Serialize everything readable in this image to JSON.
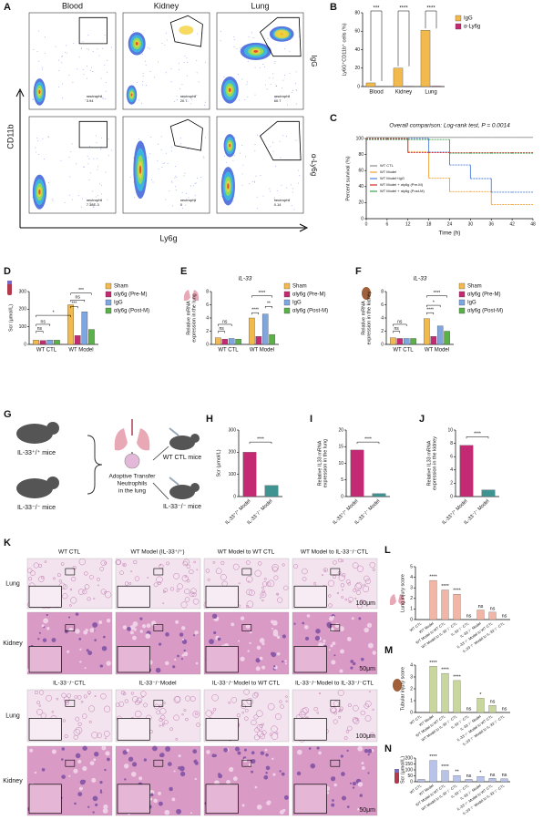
{
  "panel_a": {
    "letter": "A",
    "columns": [
      "Blood",
      "Kidney",
      "Lung"
    ],
    "rows": [
      "IgG",
      "α-Ly6g"
    ],
    "y_axis": "CD11b",
    "x_axis": "Ly6g",
    "gate_name": "neutrophil",
    "gate_values": [
      [
        "3.94",
        "20.7",
        "60.7"
      ],
      [
        "7.38E-3",
        "0",
        "0.14"
      ]
    ]
  },
  "chart_data": [
    {
      "letter": "B",
      "type": "bar",
      "y_label": "Ly6G⁺CD11b⁺ cells (%)",
      "categories": [
        "Blood",
        "Kidney",
        "Lung"
      ],
      "series": [
        {
          "name": "IgG",
          "color": "#f2b94c",
          "values": [
            4,
            20,
            61
          ]
        },
        {
          "name": "α-Ly6g",
          "color": "#c42a73",
          "values": [
            0.3,
            0.4,
            0.5
          ]
        }
      ],
      "ylim": [
        0,
        80
      ],
      "yticks": [
        0,
        20,
        40,
        60,
        80
      ],
      "annotations": [
        "***",
        "****",
        "****"
      ]
    },
    {
      "letter": "C",
      "type": "line",
      "step": true,
      "title": "Overall comparison: Log-rank test, P = 0.0014",
      "x_label": "Time (h)",
      "y_label": "Percent survival (%)",
      "x": [
        0,
        6,
        12,
        18,
        24,
        30,
        36,
        42,
        48
      ],
      "xlim": [
        0,
        48
      ],
      "xticks": [
        0,
        6,
        12,
        18,
        24,
        30,
        36,
        42,
        48
      ],
      "ylim": [
        0,
        100
      ],
      "yticks": [
        0,
        20,
        40,
        60,
        80,
        100
      ],
      "series": [
        {
          "name": "WT CTL",
          "color": "#8a8a8a",
          "values": [
            100,
            100,
            100,
            100,
            100,
            100,
            100,
            100,
            100
          ]
        },
        {
          "name": "WT Model",
          "color": "#f0a030",
          "values": [
            100,
            100,
            83,
            50,
            33,
            33,
            17,
            17,
            17
          ]
        },
        {
          "name": "WT Model+IgG",
          "color": "#4a7ed8",
          "values": [
            100,
            100,
            100,
            83,
            67,
            50,
            33,
            33,
            33
          ]
        },
        {
          "name": "WT Model + αly6g (Pre-M)",
          "color": "#d62828",
          "values": [
            100,
            100,
            83,
            83,
            83,
            83,
            83,
            83,
            83
          ]
        },
        {
          "name": "WT Model + αly6g (Post-M)",
          "color": "#3aa04a",
          "values": [
            100,
            100,
            100,
            100,
            83,
            83,
            83,
            83,
            83
          ]
        }
      ]
    },
    {
      "letter": "D",
      "type": "bar",
      "y_label": [
        "Scr (μmol/L)"
      ],
      "categories": [
        "WT CTL",
        "WT Model"
      ],
      "series": [
        {
          "name": "Sham",
          "color": "#f2b94c",
          "values": [
            25,
            225
          ]
        },
        {
          "name": "αly6g (Pre-M)",
          "color": "#c42a73",
          "values": [
            22,
            50
          ]
        },
        {
          "name": "IgG",
          "color": "#7ea6e0",
          "values": [
            25,
            185
          ]
        },
        {
          "name": "αly6g (Post-M)",
          "color": "#5bb04a",
          "values": [
            24,
            85
          ]
        }
      ],
      "ylim": [
        0,
        300
      ],
      "yticks": [
        0,
        100,
        200,
        300
      ],
      "annotations": [
        "ns",
        "ns",
        "*",
        "***",
        "ns",
        "***"
      ]
    },
    {
      "letter": "E",
      "type": "bar",
      "title": "IL-33",
      "y_label": [
        "Relative mRNA",
        "expression in the lung"
      ],
      "categories": [
        "WT CTL",
        "WT Model"
      ],
      "series": [
        {
          "name": "Sham",
          "color": "#f2b94c",
          "values": [
            1,
            4
          ]
        },
        {
          "name": "αly6g (Pre-M)",
          "color": "#c42a73",
          "values": [
            0.8,
            1.2
          ]
        },
        {
          "name": "IgG",
          "color": "#7ea6e0",
          "values": [
            0.9,
            4.6
          ]
        },
        {
          "name": "αly6g (Post-M)",
          "color": "#5bb04a",
          "values": [
            0.8,
            1.5
          ]
        }
      ],
      "ylim": [
        0,
        8
      ],
      "yticks": [
        0,
        2,
        4,
        6,
        8
      ],
      "annotations": [
        "ns",
        "ns",
        "****",
        "**",
        "****"
      ]
    },
    {
      "letter": "F",
      "type": "bar",
      "title": "IL-33",
      "y_label": [
        "Relative mRNA",
        "expression in the kidney"
      ],
      "categories": [
        "WT CTL",
        "WT Model"
      ],
      "series": [
        {
          "name": "Sham",
          "color": "#f2b94c",
          "values": [
            1,
            3.9
          ]
        },
        {
          "name": "αly6g (Pre-M)",
          "color": "#c42a73",
          "values": [
            0.9,
            1.2
          ]
        },
        {
          "name": "IgG",
          "color": "#7ea6e0",
          "values": [
            0.9,
            2.8
          ]
        },
        {
          "name": "αly6g (Post-M)",
          "color": "#5bb04a",
          "values": [
            0.9,
            2
          ]
        }
      ],
      "ylim": [
        0,
        8
      ],
      "yticks": [
        0,
        2,
        4,
        6,
        8
      ],
      "annotations": [
        "ns",
        "ns",
        "****",
        "*",
        "****"
      ]
    },
    {
      "letter": "H",
      "type": "bar",
      "y_label": [
        "Scr (μmol/L)"
      ],
      "categories": [
        "IL-33⁺/⁺ Model",
        "IL-33⁻/⁻ Model"
      ],
      "values": [
        200,
        50
      ],
      "colors": [
        "#c42a73",
        "#3f9391"
      ],
      "ylim": [
        0,
        300
      ],
      "yticks": [
        0,
        100,
        200,
        300
      ],
      "annotations": [
        "****"
      ]
    },
    {
      "letter": "I",
      "type": "bar",
      "y_label": [
        "Relative IL33 mRNA",
        "expression in the lung"
      ],
      "categories": [
        "IL-33⁺/⁺ Model",
        "IL-33⁻/⁻ Model"
      ],
      "values": [
        14,
        0.9
      ],
      "colors": [
        "#c42a73",
        "#3f9391"
      ],
      "ylim": [
        0,
        20
      ],
      "yticks": [
        0,
        5,
        10,
        15,
        20
      ],
      "annotations": [
        "****"
      ]
    },
    {
      "letter": "J",
      "type": "bar",
      "y_label": [
        "Relative IL33 mRNA",
        "expression in the kidney"
      ],
      "categories": [
        "IL-33⁺/⁺ Model",
        "IL-33⁻/⁻ Model"
      ],
      "values": [
        7.7,
        1
      ],
      "colors": [
        "#c42a73",
        "#3f9391"
      ],
      "ylim": [
        0,
        10
      ],
      "yticks": [
        0,
        2,
        4,
        6,
        8,
        10
      ],
      "annotations": [
        "****"
      ]
    },
    {
      "letter": "L",
      "type": "bar",
      "y_label": [
        "Lung injury score"
      ],
      "categories": [
        "WT CTL",
        "WT Model",
        "WT Model to WT CTL",
        "WT Model to IL-33⁻/⁻ CTL",
        "IL-33⁻/⁻ CTL",
        "IL-33⁻/⁻ Model",
        "IL-33⁻/⁻ Model to WT CTL",
        "IL-33⁻/⁻ Model to IL-33⁻/⁻ CTL"
      ],
      "values": [
        0,
        3.7,
        2.8,
        2.4,
        0,
        0.9,
        0.7,
        0
      ],
      "color": "#f2b6a6",
      "ylim": [
        0,
        5
      ],
      "yticks": [
        0,
        1,
        2,
        3,
        4,
        5
      ],
      "annotations": [
        null,
        "****",
        "****",
        "****",
        "ns",
        "ns",
        "ns",
        "ns"
      ]
    },
    {
      "letter": "M",
      "type": "bar",
      "y_label": [
        "Tubular injury score"
      ],
      "categories": [
        "WT CTL",
        "WT Model",
        "WT Model to WT CTL",
        "WT Model to IL-33⁻/⁻ CTL",
        "IL-33⁻/⁻ CTL",
        "IL-33⁻/⁻ Model",
        "IL-33⁻/⁻ Model to WT CTL",
        "IL-33⁻/⁻ Model to IL-33⁻/⁻ CTL"
      ],
      "values": [
        0,
        3.9,
        3.3,
        2.7,
        0,
        1.2,
        0.6,
        0
      ],
      "color": "#c9d79e",
      "ylim": [
        0,
        4
      ],
      "yticks": [
        0,
        1,
        2,
        3,
        4
      ],
      "annotations": [
        null,
        "****",
        "****",
        "****",
        "ns",
        "*",
        "ns",
        "ns"
      ]
    },
    {
      "letter": "N",
      "type": "bar",
      "y_label": [
        "Scr (μmol/L)"
      ],
      "categories": [
        "WT CTL",
        "WT Model",
        "WT Model to WT CTL",
        "WT Model to IL-33⁻/⁻ CTL",
        "IL-33⁻/⁻ CTL",
        "IL-33⁻/⁻ Model",
        "IL-33⁻/⁻ Model to WT CTL",
        "IL-33⁻/⁻ Model to IL-33⁻/⁻ CTL"
      ],
      "values": [
        20,
        180,
        95,
        52,
        20,
        45,
        28,
        25
      ],
      "color": "#b9c3ea",
      "ylim": [
        0,
        200
      ],
      "yticks": [
        0,
        50,
        100,
        150,
        200
      ],
      "annotations": [
        null,
        "****",
        "****",
        "**",
        "ns",
        "*",
        "ns",
        "ns"
      ]
    }
  ],
  "panel_g": {
    "letter": "G",
    "donors": [
      "IL-33⁺/⁺ mice",
      "IL-33⁻/⁻ mice"
    ],
    "transfer": [
      "Adoptive Transfer",
      "Neutrophils",
      "in the lung"
    ],
    "recipients": [
      "WT CTL mice",
      "IL-33⁻/⁻ mice"
    ]
  },
  "panel_k": {
    "letter": "K",
    "groups": [
      {
        "headers": [
          "WT CTL",
          "WT Model (IL-33⁺/⁺)",
          "WT Model to WT CTL",
          "WT Model to IL-33⁻/⁻CTL"
        ],
        "rows": [
          "Lung",
          "Kidney"
        ],
        "scales": [
          "100μm",
          "50μm"
        ]
      },
      {
        "headers": [
          "IL-33⁻/⁻CTL",
          "IL-33⁻/⁻Model",
          "IL-33⁻/⁻Model to WT CTL",
          "IL-33⁻/⁻Model to IL-33⁻/⁻CTL"
        ],
        "rows": [
          "Lung",
          "Kidney"
        ],
        "scales": [
          "100μm",
          "50μm"
        ]
      }
    ]
  }
}
